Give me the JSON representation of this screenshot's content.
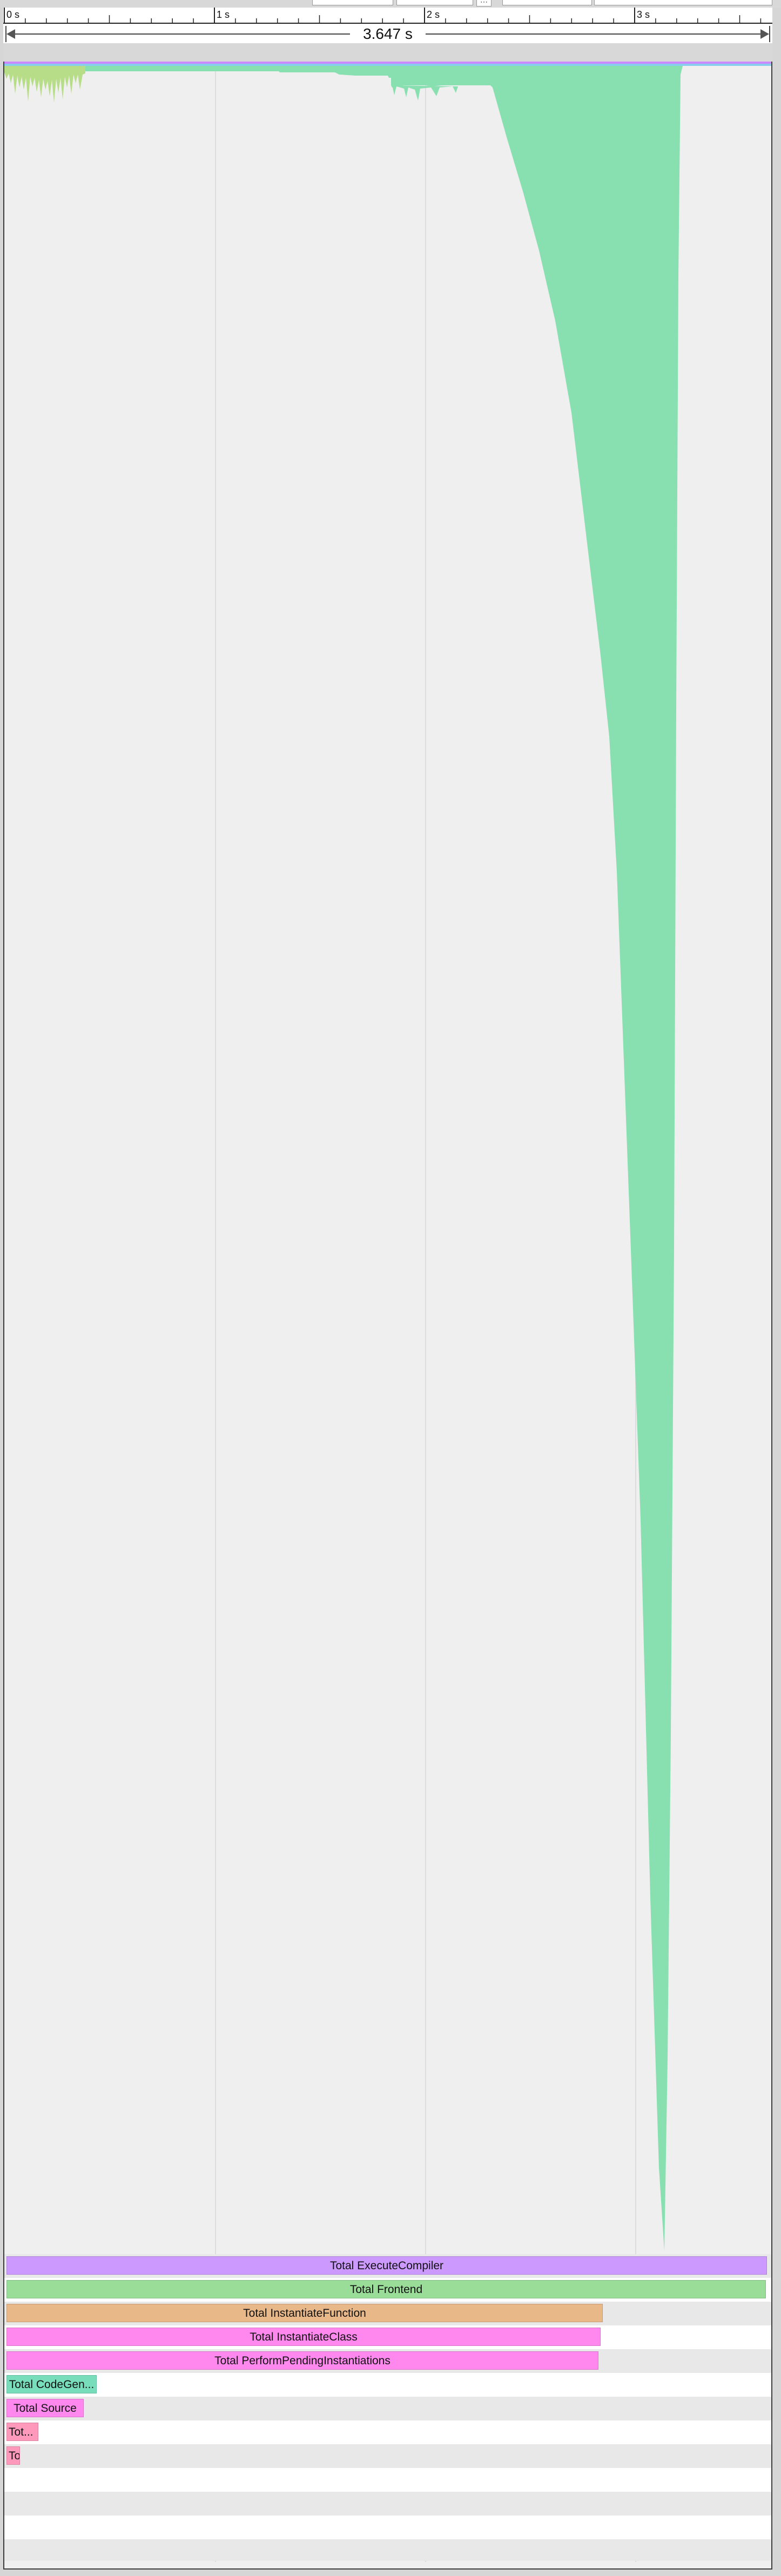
{
  "timeline": {
    "duration_label": "3.647 s",
    "ticks": [
      "0 s",
      "1 s",
      "2 s",
      "3 s"
    ],
    "total_seconds": 3.647
  },
  "colors": {
    "execute_compiler": "#cc99ff",
    "frontend": "#99dd99",
    "instantiate_function": "#e8b888",
    "instantiate_class": "#ff88ee",
    "perform_pending": "#ff88ee",
    "codegen": "#77ddbb",
    "source": "#ff88ee",
    "tot_small": "#ff99bb",
    "area_fill": "#88e0b0",
    "area_fill_early": "#b8dd88"
  },
  "bars": [
    {
      "label": "Total ExecuteCompiler",
      "fraction": 0.997
    },
    {
      "label": "Total Frontend",
      "fraction": 0.996
    },
    {
      "label": "Total InstantiateFunction",
      "fraction": 0.782
    },
    {
      "label": "Total InstantiateClass",
      "fraction": 0.779
    },
    {
      "label": "Total PerformPendingInstantiations",
      "fraction": 0.776
    },
    {
      "label": "Total CodeGen...",
      "fraction": 0.118
    },
    {
      "label": "Total Source",
      "fraction": 0.101
    },
    {
      "label": "Tot...",
      "fraction": 0.042
    },
    {
      "label": "To",
      "fraction": 0.018
    }
  ]
}
